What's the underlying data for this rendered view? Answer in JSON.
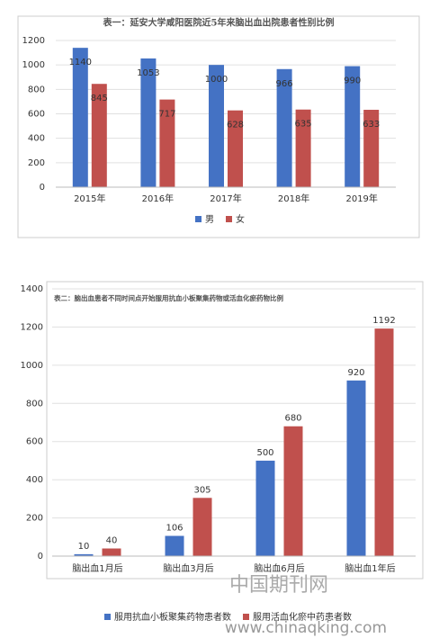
{
  "chart_data": [
    {
      "type": "bar",
      "title": "表一：延安大学咸阳医院近5年来脑出血出院患者性别比例",
      "categories": [
        "2015年",
        "2016年",
        "2017年",
        "2018年",
        "2019年"
      ],
      "series": [
        {
          "name": "男",
          "color": "#4472c4",
          "values": [
            1140,
            1053,
            1000,
            966,
            990
          ]
        },
        {
          "name": "女",
          "color": "#c0504d",
          "values": [
            845,
            717,
            628,
            635,
            633
          ]
        }
      ],
      "ylim": [
        0,
        1200
      ],
      "yticks": [
        0,
        200,
        400,
        600,
        800,
        1000,
        1200
      ],
      "grid": true,
      "data_labels": "inside",
      "legend": "bottom"
    },
    {
      "type": "bar",
      "title": "表二：脑出血患者不同时间点开始服用抗血小板聚集药物或活血化瘀药物比例",
      "categories": [
        "脑出血1月后",
        "脑出血3月后",
        "脑出血6月后",
        "脑出血1年后"
      ],
      "series": [
        {
          "name": "服用抗血小板聚集药物患者数",
          "color": "#4472c4",
          "values": [
            10,
            106,
            500,
            920
          ]
        },
        {
          "name": "服用活血化瘀中药患者数",
          "color": "#c0504d",
          "values": [
            40,
            305,
            680,
            1192
          ]
        }
      ],
      "ylim": [
        0,
        1400
      ],
      "yticks": [
        0,
        200,
        400,
        600,
        800,
        1000,
        1200,
        1400
      ],
      "grid": true,
      "data_labels": "above",
      "legend": "bottom"
    }
  ],
  "watermark": {
    "site": "中国期刊网",
    "url": "www.chinaqking.com"
  }
}
